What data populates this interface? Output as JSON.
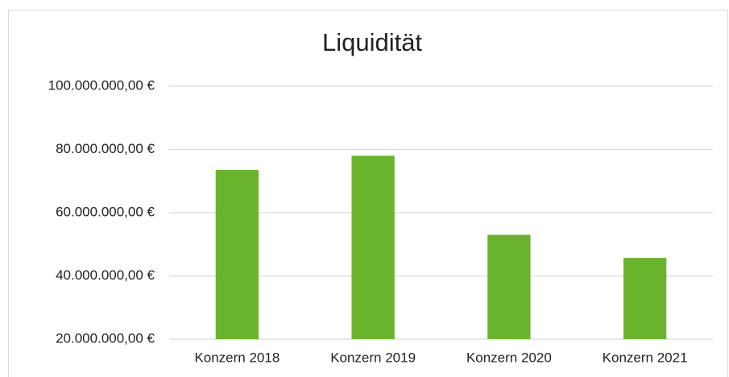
{
  "chart_data": {
    "type": "bar",
    "title": "Liquidität",
    "categories": [
      "Konzern 2018",
      "Konzern 2019",
      "Konzern 2020",
      "Konzern 2021"
    ],
    "values": [
      73500000,
      78000000,
      53000000,
      45700000
    ],
    "color": "#6ab42d",
    "ylim": [
      20000000,
      100000000
    ],
    "yticks": [
      {
        "value": 20000000,
        "label": "20.000.000,00 €"
      },
      {
        "value": 40000000,
        "label": "40.000.000,00 €"
      },
      {
        "value": 60000000,
        "label": "60.000.000,00 €"
      },
      {
        "value": 80000000,
        "label": "80.000.000,00 €"
      },
      {
        "value": 100000000,
        "label": "100.000.000,00 €"
      }
    ],
    "grid": true
  }
}
